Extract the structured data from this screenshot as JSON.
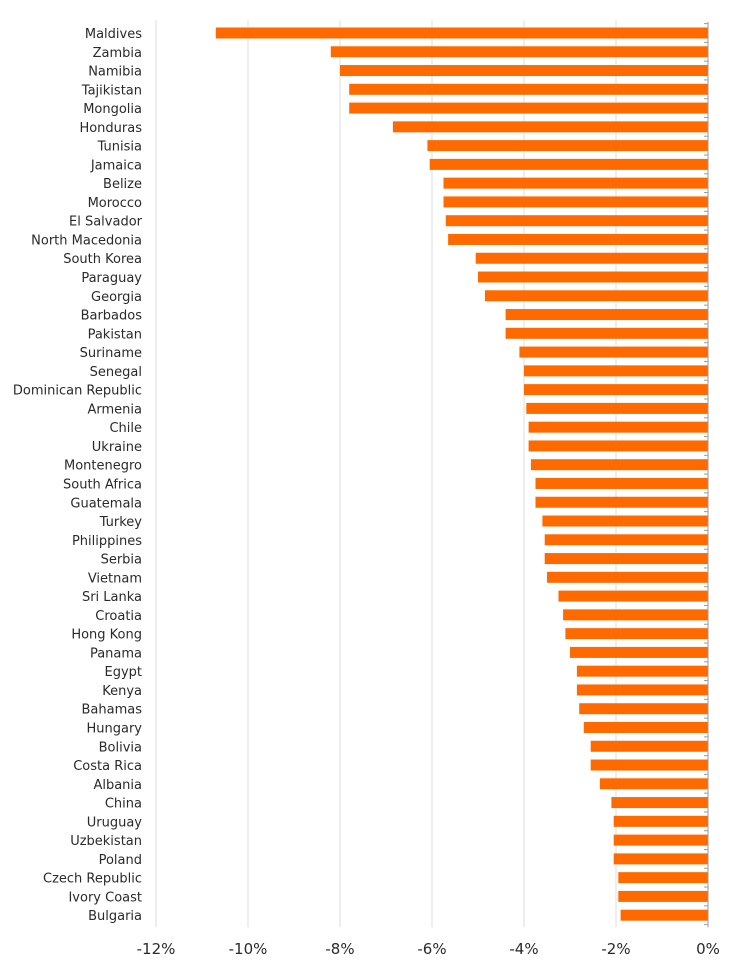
{
  "chart_data": {
    "type": "bar",
    "orientation": "horizontal",
    "title": "",
    "xlabel": "",
    "ylabel": "",
    "xlim": [
      -12,
      0
    ],
    "x_ticks": [
      -12,
      -10,
      -8,
      -6,
      -4,
      -2,
      0
    ],
    "x_tick_labels": [
      "-12%",
      "-10%",
      "-8%",
      "-6%",
      "-4%",
      "-2%",
      "0%"
    ],
    "grid": "vertical",
    "bar_color": "#ff6a00",
    "categories": [
      "Maldives",
      "Zambia",
      "Namibia",
      "Tajikistan",
      "Mongolia",
      "Honduras",
      "Tunisia",
      "Jamaica",
      "Belize",
      "Morocco",
      "El Salvador",
      "North Macedonia",
      "South Korea",
      "Paraguay",
      "Georgia",
      "Barbados",
      "Pakistan",
      "Suriname",
      "Senegal",
      "Dominican Republic",
      "Armenia",
      "Chile",
      "Ukraine",
      "Montenegro",
      "South Africa",
      "Guatemala",
      "Turkey",
      "Philippines",
      "Serbia",
      "Vietnam",
      "Sri Lanka",
      "Croatia",
      "Hong Kong",
      "Panama",
      "Egypt",
      "Kenya",
      "Bahamas",
      "Hungary",
      "Bolivia",
      "Costa Rica",
      "Albania",
      "China",
      "Uruguay",
      "Uzbekistan",
      "Poland",
      "Czech Republic",
      "Ivory Coast",
      "Bulgaria"
    ],
    "values": [
      -10.7,
      -8.2,
      -8.0,
      -7.8,
      -7.8,
      -6.85,
      -6.1,
      -6.05,
      -5.75,
      -5.75,
      -5.7,
      -5.65,
      -5.05,
      -5.0,
      -4.85,
      -4.4,
      -4.4,
      -4.1,
      -4.0,
      -4.0,
      -3.95,
      -3.9,
      -3.9,
      -3.85,
      -3.75,
      -3.75,
      -3.6,
      -3.55,
      -3.55,
      -3.5,
      -3.25,
      -3.15,
      -3.1,
      -3.0,
      -2.85,
      -2.85,
      -2.8,
      -2.7,
      -2.55,
      -2.55,
      -2.35,
      -2.1,
      -2.05,
      -2.05,
      -2.05,
      -1.95,
      -1.95,
      -1.9
    ]
  }
}
